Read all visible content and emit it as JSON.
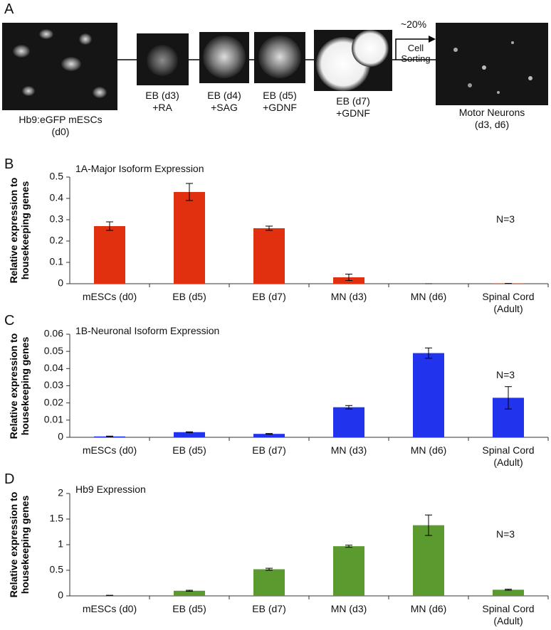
{
  "diagram": {
    "panel": "A",
    "stages": [
      {
        "lines": [
          "Hb9:eGFP mESCs",
          "(d0)"
        ]
      },
      {
        "lines": [
          "EB (d3)",
          "+RA"
        ]
      },
      {
        "lines": [
          "EB (d4)",
          "+SAG"
        ]
      },
      {
        "lines": [
          "EB (d5)",
          "+GDNF"
        ]
      },
      {
        "lines": [
          "EB (d7)",
          "+GDNF"
        ]
      },
      {
        "lines": [
          "Motor Neurons",
          "(d3, d6)"
        ]
      }
    ],
    "arrow_top": "~20%",
    "arrow_lines": [
      "Cell",
      "Sorting"
    ]
  },
  "chart_data": [
    {
      "type": "bar",
      "panel": "B",
      "title": "1A-Major Isoform Expression",
      "y_label": "Relative expression to housekeeping genes",
      "annotation": "N=3",
      "categories": [
        "mESCs (d0)",
        "EB (d5)",
        "EB (d7)",
        "MN (d3)",
        "MN (d6)",
        "Spinal Cord (Adult)"
      ],
      "values": [
        0.27,
        0.43,
        0.26,
        0.03,
        0,
        0.001
      ],
      "errors": [
        0.02,
        0.04,
        0.01,
        0.015,
        0,
        0
      ],
      "color": "#e0300f",
      "ylim": [
        0,
        0.5
      ],
      "yticks": [
        0,
        0.1,
        0.2,
        0.3,
        0.4,
        0.5
      ]
    },
    {
      "type": "bar",
      "panel": "C",
      "title": "1B-Neuronal Isoform Expression",
      "y_label": "Relative expression to housekeeping genes",
      "annotation": "N=3",
      "categories": [
        "mESCs (d0)",
        "EB (d5)",
        "EB (d7)",
        "MN (d3)",
        "MN (d6)",
        "Spinal Cord (Adult)"
      ],
      "values": [
        0.0005,
        0.003,
        0.002,
        0.0175,
        0.049,
        0.023
      ],
      "errors": [
        0.0002,
        0.0002,
        0.0002,
        0.001,
        0.003,
        0.0065
      ],
      "color": "#2233ee",
      "ylim": [
        0,
        0.06
      ],
      "yticks": [
        0,
        0.01,
        0.02,
        0.03,
        0.04,
        0.05,
        0.06
      ]
    },
    {
      "type": "bar",
      "panel": "D",
      "title": "Hb9 Expression",
      "y_label": "Relative expression to housekeeping genes",
      "annotation": "N=3",
      "categories": [
        "mESCs (d0)",
        "EB (d5)",
        "EB (d7)",
        "MN (d3)",
        "MN (d6)",
        "Spinal Cord (Adult)"
      ],
      "values": [
        0.01,
        0.1,
        0.52,
        0.97,
        1.38,
        0.12
      ],
      "errors": [
        0,
        0.01,
        0.02,
        0.02,
        0.2,
        0.01
      ],
      "color": "#5b9a2e",
      "ylim": [
        0,
        2
      ],
      "yticks": [
        0,
        0.5,
        1,
        1.5,
        2
      ]
    }
  ]
}
